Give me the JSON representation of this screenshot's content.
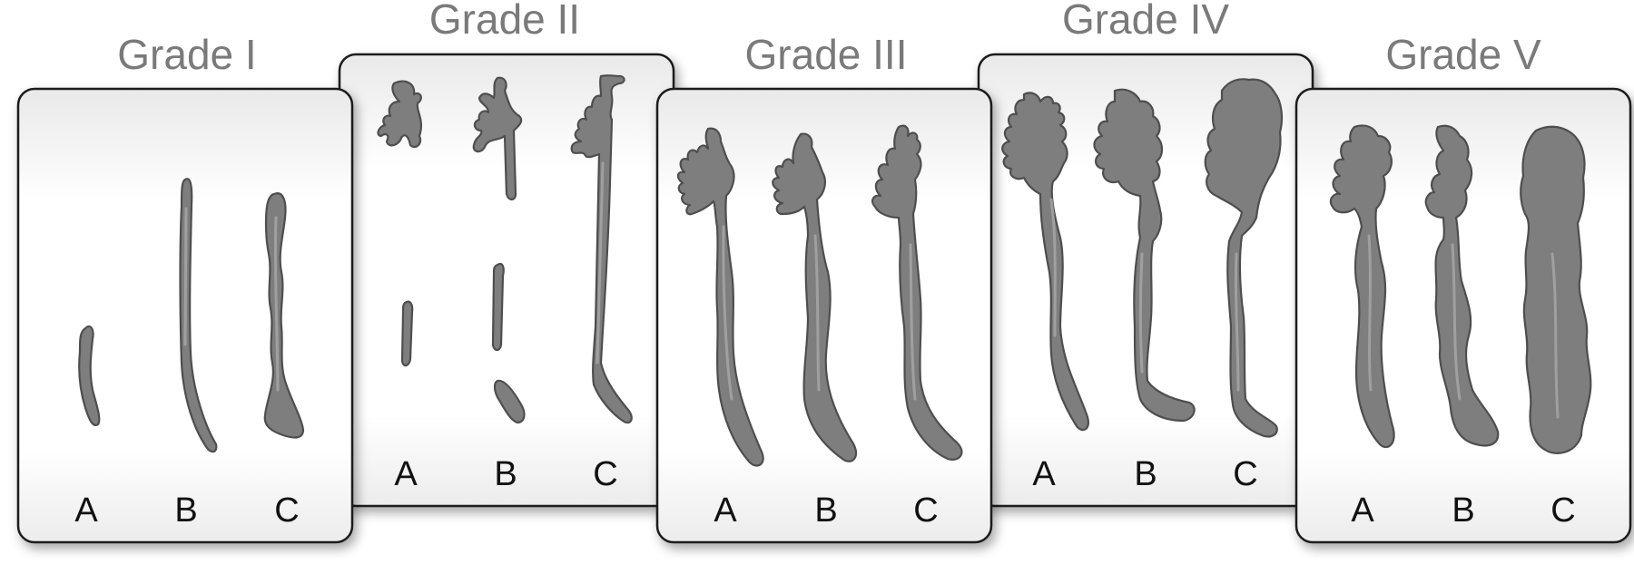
{
  "panels": [
    {
      "id": "grade-1",
      "title": "Grade I",
      "sub_labels": [
        "A",
        "B",
        "C"
      ]
    },
    {
      "id": "grade-2",
      "title": "Grade II",
      "sub_labels": [
        "A",
        "B",
        "C"
      ]
    },
    {
      "id": "grade-3",
      "title": "Grade III",
      "sub_labels": [
        "A",
        "B",
        "C"
      ]
    },
    {
      "id": "grade-4",
      "title": "Grade IV",
      "sub_labels": [
        "A",
        "B",
        "C"
      ]
    },
    {
      "id": "grade-5",
      "title": "Grade V",
      "sub_labels": [
        "A",
        "B",
        "C"
      ]
    }
  ],
  "colors": {
    "title_gray": "#7a7a7a",
    "ureter_fill": "#7e7e7e",
    "ureter_stroke": "#4e4e4e",
    "card_border": "#1a1a1a"
  }
}
